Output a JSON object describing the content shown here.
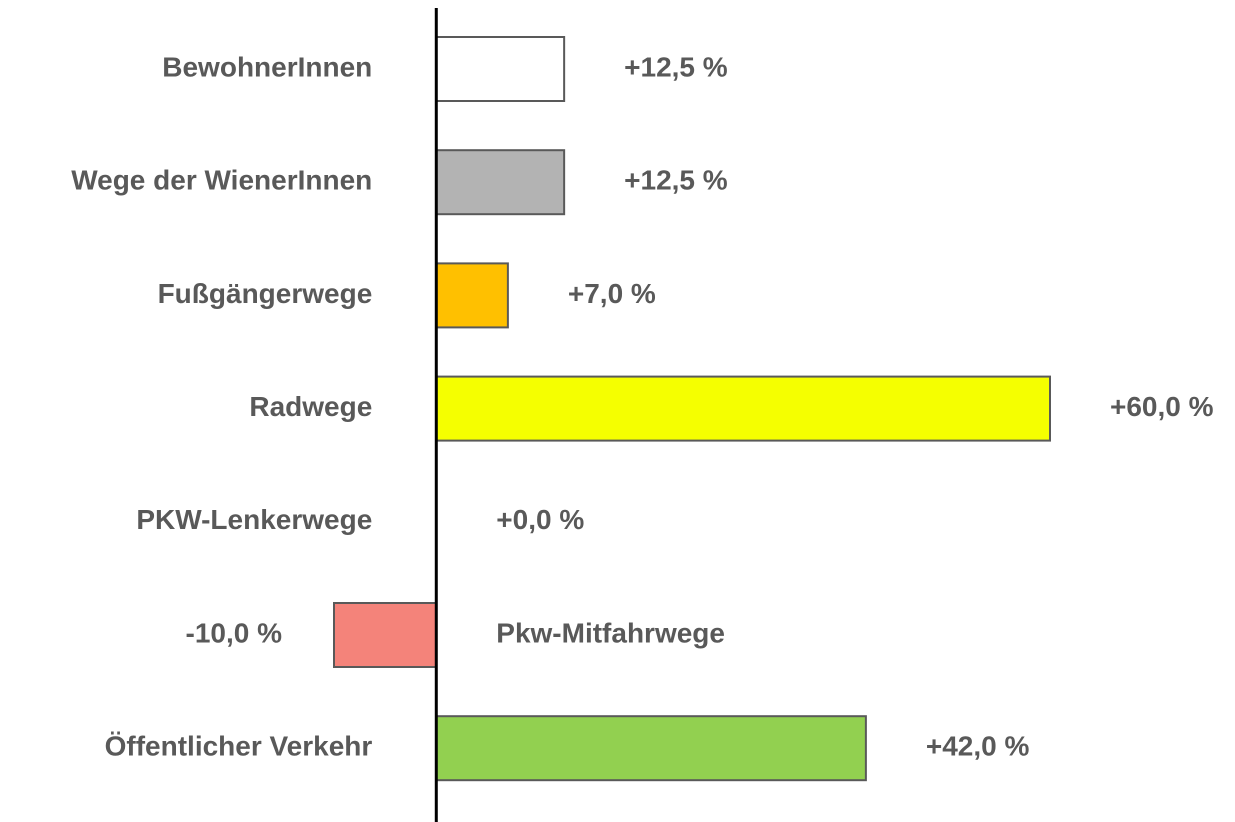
{
  "chart_data": {
    "type": "barh",
    "categories": [
      "BewohnerInnen",
      "Wege der WienerInnen",
      "Fußgängerwege",
      "Radwege",
      "PKW-Lenkerwege",
      "Pkw-Mitfahrwege",
      "Öffentlicher Verkehr"
    ],
    "values": [
      12.5,
      12.5,
      7.0,
      60.0,
      0.0,
      -10.0,
      42.0
    ],
    "value_labels": [
      "+12,5 %",
      "+12,5 %",
      "+7,0 %",
      "+60,0 %",
      "+0,0 %",
      "-10,0 %",
      "+42,0 %"
    ],
    "colors": [
      "#ffffff",
      "#b3b3b3",
      "#ffc000",
      "#f5ff00",
      "#ffffff",
      "#f4837a",
      "#92d050"
    ],
    "xlim": [
      -10,
      60
    ]
  }
}
